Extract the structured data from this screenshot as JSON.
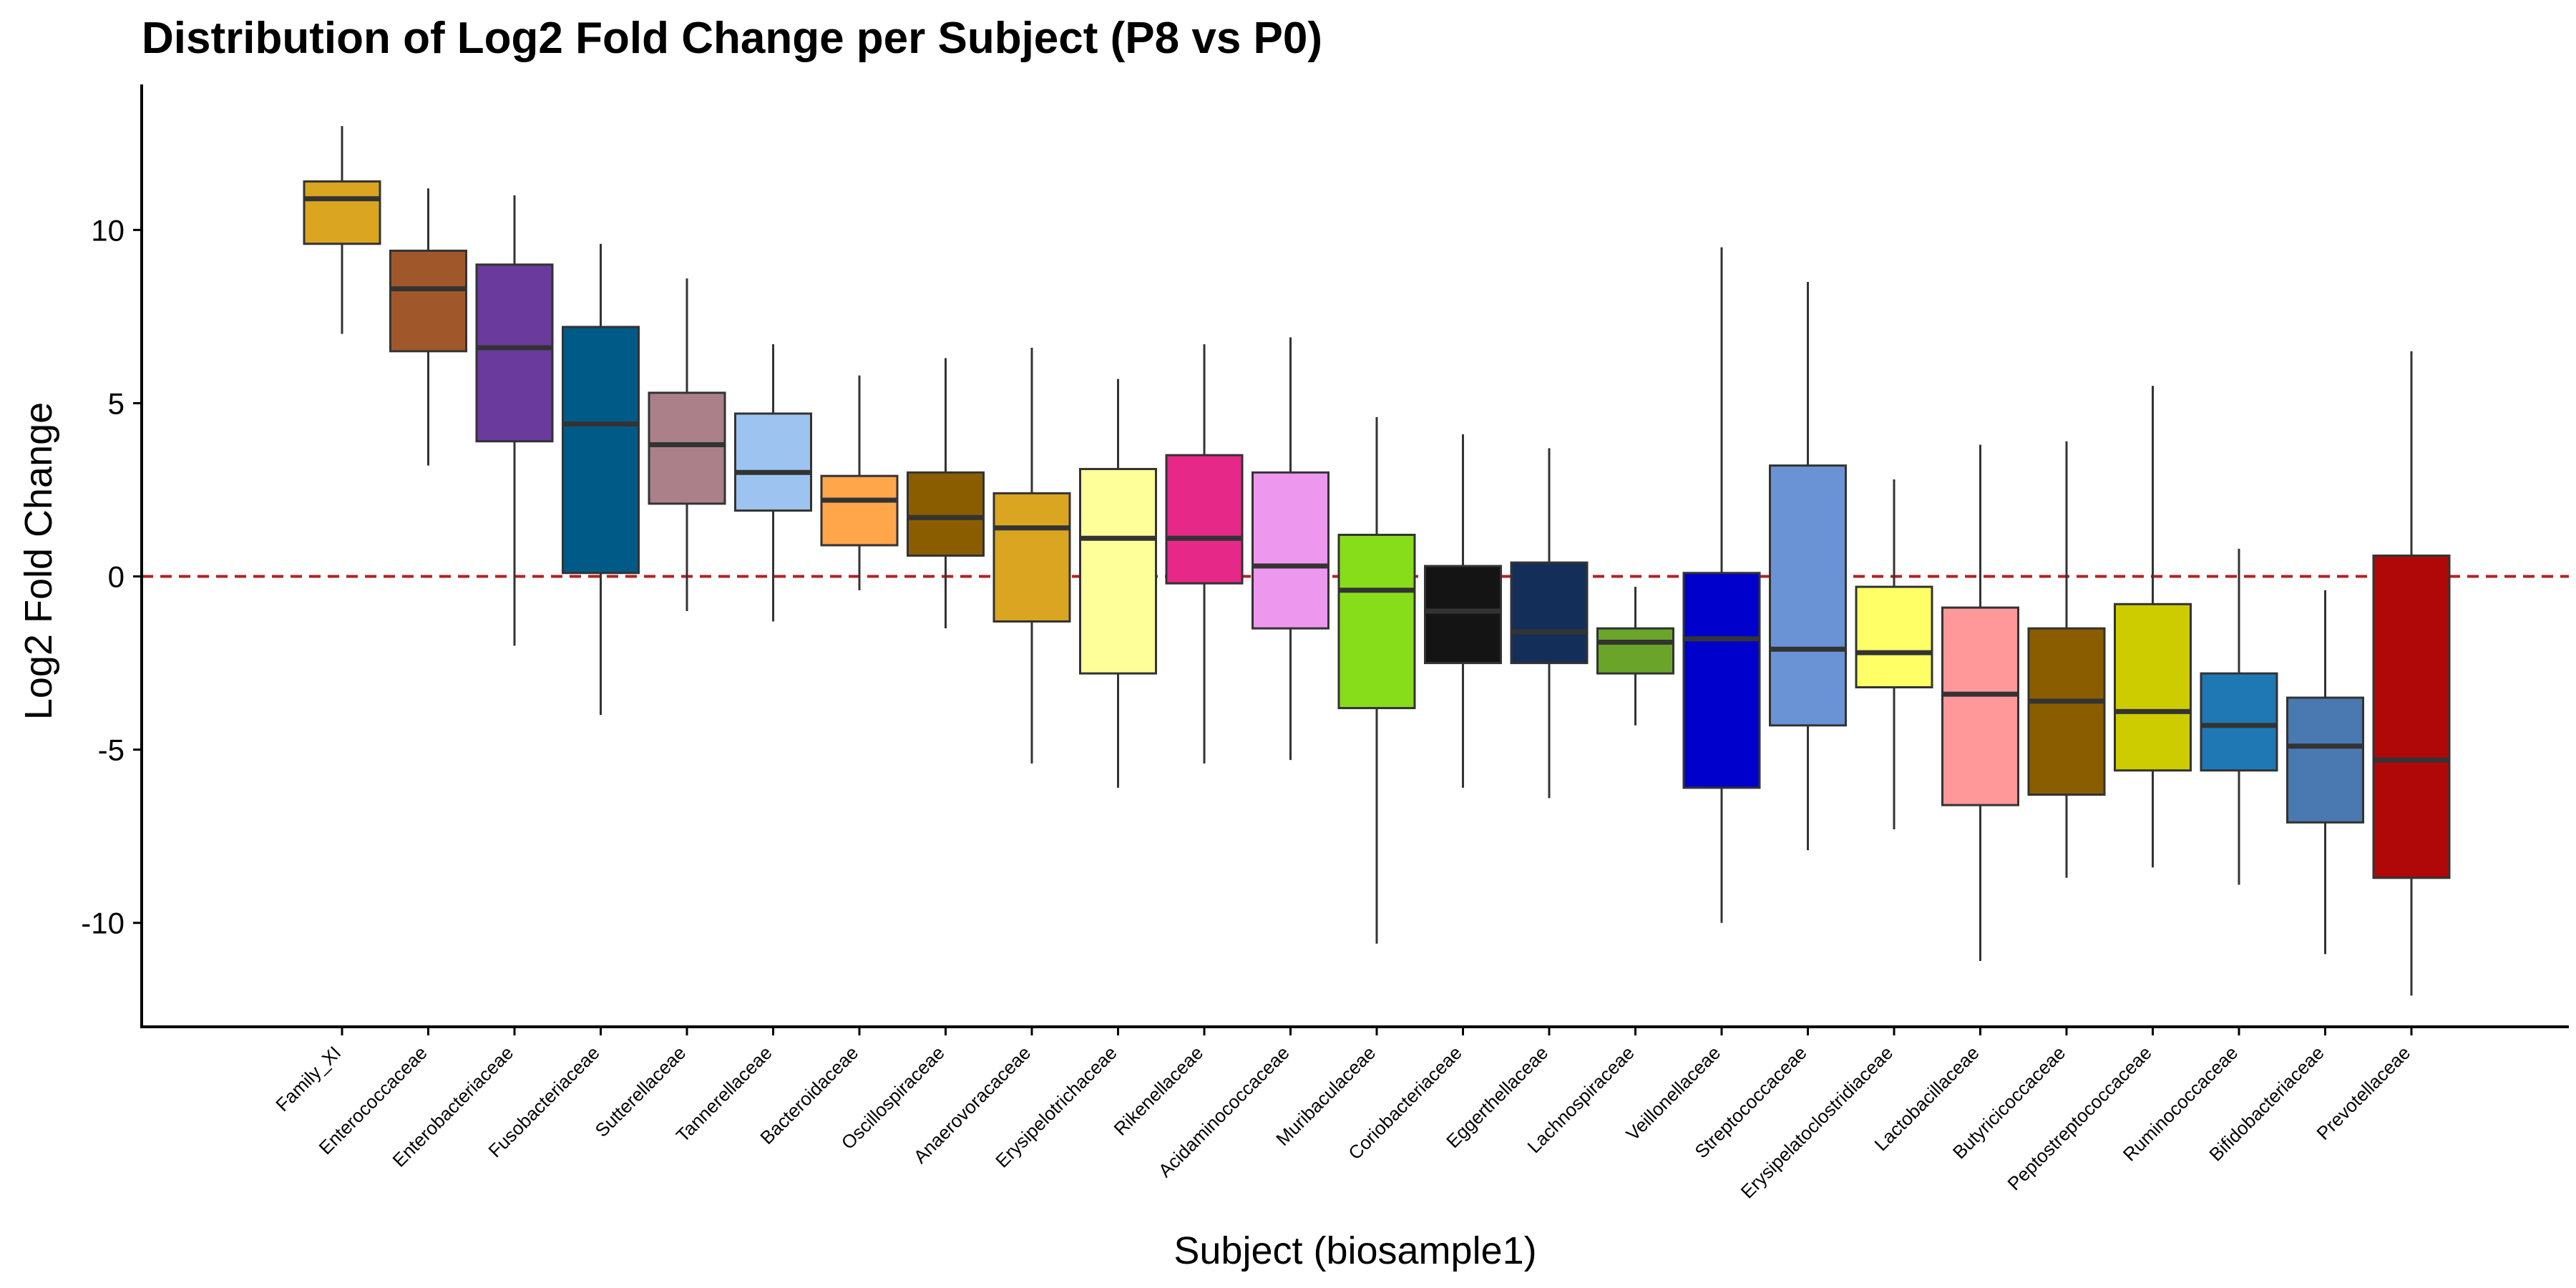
{
  "chart_data": {
    "type": "boxplot",
    "title": "Distribution of Log2 Fold Change per Subject (P8 vs P0)",
    "xlabel": "Subject (biosample1)",
    "ylabel": "Log2 Fold Change",
    "ylim": [
      -13.0,
      14.2
    ],
    "yticks": [
      -10,
      -5,
      0,
      5,
      10
    ],
    "ytick_labels": [
      "-10",
      "-5",
      "0",
      "5",
      "10"
    ],
    "reference_line": {
      "y": 0,
      "style": "dashed",
      "color": "#B22222"
    },
    "grid": false,
    "legend": "none",
    "categories": [
      "Family_XI",
      "Enterococcaceae",
      "Enterobacteriaceae",
      "Fusobacteriaceae",
      "Sutterellaceae",
      "Tannerellaceae",
      "Bacteroidaceae",
      "Oscillospiraceae",
      "Anaerovoracaceae",
      "Erysipelotrichaceae",
      "Rikenellaceae",
      "Acidaminococcaceae",
      "Muribaculaceae",
      "Coriobacteriaceae",
      "Eggerthellaceae",
      "Lachnospiraceae",
      "Veillonellaceae",
      "Streptococcaceae",
      "Erysipelatoclostridiaceae",
      "Lactobacillaceae",
      "Butyricicoccaceae",
      "Peptostreptococcaceae",
      "Ruminococcaceae",
      "Bifidobacteriaceae",
      "Prevotellaceae"
    ],
    "boxes": [
      {
        "min": 7.0,
        "q1": 9.6,
        "median": 10.9,
        "q3": 11.4,
        "max": 13.0,
        "color": "#DAA520"
      },
      {
        "min": 3.2,
        "q1": 6.5,
        "median": 8.3,
        "q3": 9.4,
        "max": 11.2,
        "color": "#A0582A"
      },
      {
        "min": -2.0,
        "q1": 3.9,
        "median": 6.6,
        "q3": 9.0,
        "max": 11.0,
        "color": "#6A3A9C"
      },
      {
        "min": -4.0,
        "q1": 0.1,
        "median": 4.4,
        "q3": 7.2,
        "max": 9.6,
        "color": "#005A88"
      },
      {
        "min": -1.0,
        "q1": 2.1,
        "median": 3.8,
        "q3": 5.3,
        "max": 8.6,
        "color": "#AB8089"
      },
      {
        "min": -1.3,
        "q1": 1.9,
        "median": 3.0,
        "q3": 4.7,
        "max": 6.7,
        "color": "#9DC3F0"
      },
      {
        "min": -0.4,
        "q1": 0.9,
        "median": 2.2,
        "q3": 2.9,
        "max": 5.8,
        "color": "#FFA64A"
      },
      {
        "min": -1.5,
        "q1": 0.6,
        "median": 1.7,
        "q3": 3.0,
        "max": 6.3,
        "color": "#8A5E00"
      },
      {
        "min": -5.4,
        "q1": -1.3,
        "median": 1.4,
        "q3": 2.4,
        "max": 6.6,
        "color": "#DAA520"
      },
      {
        "min": -6.1,
        "q1": -2.8,
        "median": 1.1,
        "q3": 3.1,
        "max": 5.7,
        "color": "#FFFF99"
      },
      {
        "min": -5.4,
        "q1": -0.2,
        "median": 1.1,
        "q3": 3.5,
        "max": 6.7,
        "color": "#E62889"
      },
      {
        "min": -5.3,
        "q1": -1.5,
        "median": 0.3,
        "q3": 3.0,
        "max": 6.9,
        "color": "#EE97EE"
      },
      {
        "min": -10.6,
        "q1": -3.8,
        "median": -0.4,
        "q3": 1.2,
        "max": 4.6,
        "color": "#88DD1A"
      },
      {
        "min": -6.1,
        "q1": -2.5,
        "median": -1.0,
        "q3": 0.3,
        "max": 4.1,
        "color": "#141414"
      },
      {
        "min": -6.4,
        "q1": -2.5,
        "median": -1.6,
        "q3": 0.4,
        "max": 3.7,
        "color": "#142E5A"
      },
      {
        "min": -4.3,
        "q1": -2.8,
        "median": -1.9,
        "q3": -1.5,
        "max": -0.3,
        "color": "#6AA52A"
      },
      {
        "min": -10.0,
        "q1": -6.1,
        "median": -1.8,
        "q3": 0.1,
        "max": 9.5,
        "color": "#0000CC"
      },
      {
        "min": -7.9,
        "q1": -4.3,
        "median": -2.1,
        "q3": 3.2,
        "max": 8.5,
        "color": "#6A93D6"
      },
      {
        "min": -7.3,
        "q1": -3.2,
        "median": -2.2,
        "q3": -0.3,
        "max": 2.8,
        "color": "#FFFF66"
      },
      {
        "min": -11.1,
        "q1": -6.6,
        "median": -3.4,
        "q3": -0.9,
        "max": 3.8,
        "color": "#FF9999"
      },
      {
        "min": -8.7,
        "q1": -6.3,
        "median": -3.6,
        "q3": -1.5,
        "max": 3.9,
        "color": "#8A5E00"
      },
      {
        "min": -8.4,
        "q1": -5.6,
        "median": -3.9,
        "q3": -0.8,
        "max": 5.5,
        "color": "#CCCC00"
      },
      {
        "min": -8.9,
        "q1": -5.6,
        "median": -4.3,
        "q3": -2.8,
        "max": 0.8,
        "color": "#1F78B4"
      },
      {
        "min": -10.9,
        "q1": -7.1,
        "median": -4.9,
        "q3": -3.5,
        "max": -0.4,
        "color": "#4A78B0"
      },
      {
        "min": -12.1,
        "q1": -8.7,
        "median": -5.3,
        "q3": 0.6,
        "max": 6.5,
        "color": "#B00808"
      }
    ]
  }
}
